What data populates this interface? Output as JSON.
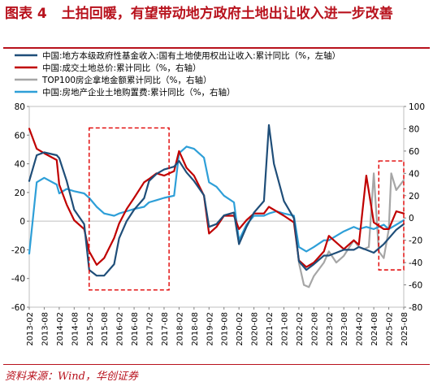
{
  "header": {
    "figure_label": "图表 4",
    "title": "土拍回暖，有望带动地方政府土地出让收入进一步改善"
  },
  "source": "资料来源：Wind，华创证券",
  "chart_data": {
    "type": "line",
    "x_ticks": [
      "2013-02",
      "2013-08",
      "2014-02",
      "2014-08",
      "2015-02",
      "2015-08",
      "2016-02",
      "2016-08",
      "2017-02",
      "2017-08",
      "2018-02",
      "2018-08",
      "2019-02",
      "2019-08",
      "2020-02",
      "2020-08",
      "2021-02",
      "2021-08",
      "2022-02",
      "2022-08",
      "2023-02",
      "2023-08",
      "2024-02",
      "2024-08",
      "2025-02",
      "2025-08"
    ],
    "ylim_left": [
      -60,
      80
    ],
    "yticks_left": [
      80,
      60,
      40,
      20,
      0,
      -20,
      -40,
      -60
    ],
    "ylim_right": [
      -80,
      100
    ],
    "yticks_right": [
      100,
      80,
      60,
      40,
      20,
      0,
      -20,
      -40,
      -60,
      -80
    ],
    "legend_position": "top-left",
    "series": [
      {
        "name": "中国:地方本级政府性基金收入:国有土地使用权出让收入:累计同比（%，左轴）",
        "axis": "left",
        "color": "#1f4e79",
        "points": [
          [
            "2013-02",
            28
          ],
          [
            "2013-05",
            46
          ],
          [
            "2013-08",
            48
          ],
          [
            "2014-01",
            46
          ],
          [
            "2014-02",
            44
          ],
          [
            "2014-05",
            28
          ],
          [
            "2014-08",
            8
          ],
          [
            "2014-12",
            -2
          ],
          [
            "2015-02",
            -34
          ],
          [
            "2015-05",
            -38
          ],
          [
            "2015-08",
            -38
          ],
          [
            "2015-12",
            -30
          ],
          [
            "2016-02",
            -12
          ],
          [
            "2016-05",
            0
          ],
          [
            "2016-08",
            8
          ],
          [
            "2016-12",
            16
          ],
          [
            "2017-02",
            28
          ],
          [
            "2017-05",
            33
          ],
          [
            "2017-08",
            36
          ],
          [
            "2017-12",
            38
          ],
          [
            "2018-02",
            42
          ],
          [
            "2018-05",
            34
          ],
          [
            "2018-08",
            28
          ],
          [
            "2018-12",
            18
          ],
          [
            "2019-02",
            -4
          ],
          [
            "2019-05",
            -2
          ],
          [
            "2019-08",
            4
          ],
          [
            "2019-12",
            6
          ],
          [
            "2020-02",
            -16
          ],
          [
            "2020-05",
            -4
          ],
          [
            "2020-08",
            6
          ],
          [
            "2020-12",
            14
          ],
          [
            "2021-02",
            67
          ],
          [
            "2021-04",
            40
          ],
          [
            "2021-08",
            14
          ],
          [
            "2021-12",
            2
          ],
          [
            "2022-02",
            -28
          ],
          [
            "2022-05",
            -34
          ],
          [
            "2022-08",
            -30
          ],
          [
            "2022-12",
            -24
          ],
          [
            "2023-02",
            -24
          ],
          [
            "2023-05",
            -22
          ],
          [
            "2023-08",
            -20
          ],
          [
            "2023-12",
            -20
          ],
          [
            "2024-02",
            -18
          ],
          [
            "2024-05",
            -20
          ],
          [
            "2024-08",
            -22
          ],
          [
            "2024-12",
            -16
          ],
          [
            "2025-02",
            -12
          ],
          [
            "2025-05",
            -6
          ],
          [
            "2025-08",
            -2
          ]
        ]
      },
      {
        "name": "中国:成交土地总价:累计同比（%，右轴）",
        "axis": "right",
        "color": "#c00000",
        "points": [
          [
            "2013-02",
            80
          ],
          [
            "2013-05",
            62
          ],
          [
            "2013-08",
            58
          ],
          [
            "2014-01",
            52
          ],
          [
            "2014-02",
            30
          ],
          [
            "2014-05",
            12
          ],
          [
            "2014-08",
            -2
          ],
          [
            "2014-12",
            -10
          ],
          [
            "2015-02",
            -30
          ],
          [
            "2015-05",
            -42
          ],
          [
            "2015-08",
            -36
          ],
          [
            "2015-12",
            -18
          ],
          [
            "2016-02",
            -5
          ],
          [
            "2016-05",
            8
          ],
          [
            "2016-08",
            18
          ],
          [
            "2016-12",
            32
          ],
          [
            "2017-02",
            35
          ],
          [
            "2017-05",
            40
          ],
          [
            "2017-08",
            38
          ],
          [
            "2017-12",
            42
          ],
          [
            "2018-02",
            60
          ],
          [
            "2018-05",
            45
          ],
          [
            "2018-08",
            38
          ],
          [
            "2018-12",
            20
          ],
          [
            "2019-02",
            -14
          ],
          [
            "2019-05",
            -8
          ],
          [
            "2019-08",
            2
          ],
          [
            "2019-12",
            2
          ],
          [
            "2020-02",
            -10
          ],
          [
            "2020-05",
            -2
          ],
          [
            "2020-08",
            4
          ],
          [
            "2020-12",
            4
          ],
          [
            "2021-02",
            10
          ],
          [
            "2021-05",
            6
          ],
          [
            "2021-08",
            2
          ],
          [
            "2021-12",
            -4
          ],
          [
            "2022-02",
            -38
          ],
          [
            "2022-05",
            -44
          ],
          [
            "2022-08",
            -40
          ],
          [
            "2022-12",
            -30
          ],
          [
            "2023-02",
            -16
          ],
          [
            "2023-05",
            -22
          ],
          [
            "2023-08",
            -28
          ],
          [
            "2023-12",
            -20
          ],
          [
            "2024-02",
            -24
          ],
          [
            "2024-05",
            38
          ],
          [
            "2024-08",
            -4
          ],
          [
            "2024-12",
            -10
          ],
          [
            "2025-02",
            -10
          ],
          [
            "2025-05",
            6
          ],
          [
            "2025-08",
            4
          ]
        ]
      },
      {
        "name": "TOP100房企拿地金额累计同比（%，右轴）",
        "axis": "right",
        "color": "#a6a6a6",
        "points": [
          [
            "2022-02",
            -40
          ],
          [
            "2022-04",
            -60
          ],
          [
            "2022-06",
            -62
          ],
          [
            "2022-08",
            -52
          ],
          [
            "2022-12",
            -40
          ],
          [
            "2023-02",
            -30
          ],
          [
            "2023-05",
            -40
          ],
          [
            "2023-08",
            -34
          ],
          [
            "2023-12",
            -20
          ],
          [
            "2024-02",
            -26
          ],
          [
            "2024-04",
            -28
          ],
          [
            "2024-06",
            -26
          ],
          [
            "2024-08",
            40
          ],
          [
            "2024-10",
            -30
          ],
          [
            "2024-12",
            -36
          ],
          [
            "2025-02",
            -10
          ],
          [
            "2025-03",
            40
          ],
          [
            "2025-05",
            25
          ],
          [
            "2025-08",
            34
          ]
        ]
      },
      {
        "name": "中国:房地产企业土地购置费:累计同比（%，右轴）",
        "axis": "right",
        "color": "#2e9fd8",
        "points": [
          [
            "2013-02",
            -32
          ],
          [
            "2013-05",
            32
          ],
          [
            "2013-08",
            36
          ],
          [
            "2014-01",
            30
          ],
          [
            "2014-02",
            22
          ],
          [
            "2014-05",
            26
          ],
          [
            "2014-08",
            24
          ],
          [
            "2014-12",
            22
          ],
          [
            "2015-02",
            18
          ],
          [
            "2015-05",
            10
          ],
          [
            "2015-08",
            4
          ],
          [
            "2015-12",
            2
          ],
          [
            "2016-02",
            4
          ],
          [
            "2016-05",
            6
          ],
          [
            "2016-08",
            8
          ],
          [
            "2016-12",
            10
          ],
          [
            "2017-02",
            14
          ],
          [
            "2017-05",
            16
          ],
          [
            "2017-08",
            18
          ],
          [
            "2017-12",
            20
          ],
          [
            "2018-02",
            58
          ],
          [
            "2018-05",
            64
          ],
          [
            "2018-08",
            62
          ],
          [
            "2018-12",
            54
          ],
          [
            "2019-02",
            32
          ],
          [
            "2019-05",
            28
          ],
          [
            "2019-08",
            20
          ],
          [
            "2019-12",
            14
          ],
          [
            "2020-02",
            -20
          ],
          [
            "2020-05",
            -6
          ],
          [
            "2020-08",
            2
          ],
          [
            "2020-12",
            2
          ],
          [
            "2021-02",
            4
          ],
          [
            "2021-05",
            6
          ],
          [
            "2021-08",
            4
          ],
          [
            "2021-12",
            2
          ],
          [
            "2022-02",
            -26
          ],
          [
            "2022-05",
            -30
          ],
          [
            "2022-08",
            -26
          ],
          [
            "2022-12",
            -20
          ],
          [
            "2023-02",
            -20
          ],
          [
            "2023-05",
            -16
          ],
          [
            "2023-08",
            -12
          ],
          [
            "2023-12",
            -8
          ],
          [
            "2024-02",
            -10
          ],
          [
            "2024-05",
            -8
          ],
          [
            "2024-08",
            -10
          ],
          [
            "2024-12",
            -6
          ],
          [
            "2025-02",
            -10
          ],
          [
            "2025-05",
            -6
          ],
          [
            "2025-08",
            -2
          ]
        ]
      }
    ],
    "annotations": [
      {
        "type": "dashed-box",
        "color": "#e00000",
        "x_from": "2015-02",
        "x_to": "2017-10",
        "y_from_left": -48,
        "y_to_left": 65
      },
      {
        "type": "dashed-box",
        "color": "#e00000",
        "x_from": "2024-10",
        "x_to": "2025-08",
        "y_from_left": -34,
        "y_to_left": 42
      }
    ]
  }
}
